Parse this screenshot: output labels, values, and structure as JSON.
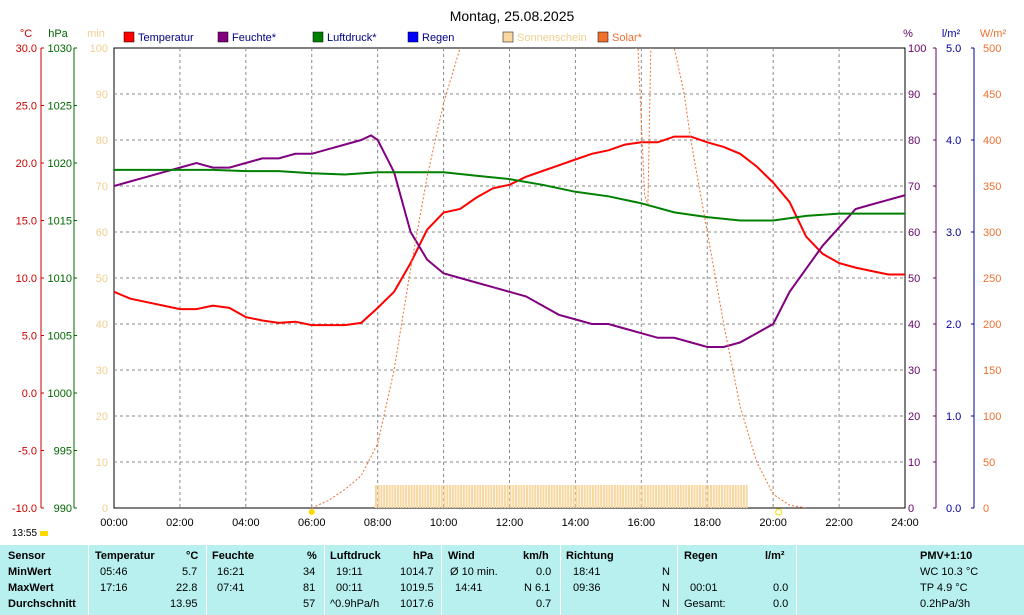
{
  "chart_data": {
    "type": "line",
    "title": "Montag, 25.08.2025",
    "axes": {
      "left_temp": {
        "unit": "°C",
        "range": [
          -10,
          30
        ],
        "ticks": [
          "30.0",
          "25.0",
          "20.0",
          "15.0",
          "10.0",
          "5.0",
          "0.0",
          "-5.0",
          "-10.0"
        ],
        "color": "#cc0000"
      },
      "left_pressure": {
        "unit": "hPa",
        "range": [
          990,
          1030
        ],
        "ticks": [
          "1030",
          "1025",
          "1020",
          "1015",
          "1010",
          "1005",
          "1000",
          "995",
          "990"
        ],
        "color": "#006600"
      },
      "left_minutes": {
        "unit": "min",
        "range": [
          0,
          100
        ],
        "ticks": [
          "100",
          "90",
          "80",
          "70",
          "60",
          "50",
          "40",
          "30",
          "20",
          "10",
          "0"
        ],
        "color": "#f0d090"
      },
      "right_humidity": {
        "unit": "%",
        "range": [
          0,
          100
        ],
        "ticks": [
          "100",
          "90",
          "80",
          "70",
          "60",
          "50",
          "40",
          "30",
          "20",
          "10",
          "0"
        ],
        "color": "#660066"
      },
      "right_rain": {
        "unit": "l/m²",
        "range": [
          0,
          5
        ],
        "ticks": [
          "5.0",
          "4.0",
          "3.0",
          "2.0",
          "1.0",
          "0.0"
        ],
        "color": "#000099"
      },
      "right_solar": {
        "unit": "W/m²",
        "range": [
          0,
          500
        ],
        "ticks": [
          "500",
          "450",
          "400",
          "350",
          "300",
          "250",
          "200",
          "150",
          "100",
          "50",
          "0"
        ],
        "color": "#f07030"
      },
      "x_ticks": [
        "00:00",
        "02:00",
        "04:00",
        "06:00",
        "08:00",
        "10:00",
        "12:00",
        "14:00",
        "16:00",
        "18:00",
        "20:00",
        "22:00",
        "24:00"
      ],
      "grid": true
    },
    "legend": [
      {
        "label": "Temperatur",
        "color": "#ff0000"
      },
      {
        "label": "Feuchte*",
        "color": "#800080"
      },
      {
        "label": "Luftdruck*",
        "color": "#008000"
      },
      {
        "label": "Regen",
        "color": "#0000ff"
      },
      {
        "label": "Sonnenschein",
        "color": "#f8d8a0"
      },
      {
        "label": "Solar*",
        "color": "#f07030"
      }
    ],
    "series": [
      {
        "name": "Temperatur",
        "axis": "left_temp",
        "color": "#ff0000",
        "x": [
          0,
          0.5,
          1,
          1.5,
          2,
          2.5,
          3,
          3.5,
          4,
          4.5,
          5,
          5.5,
          6,
          6.5,
          7,
          7.5,
          8,
          8.5,
          9,
          9.5,
          10,
          10.5,
          11,
          11.5,
          12,
          12.5,
          13,
          13.5,
          14,
          14.5,
          15,
          15.5,
          16,
          16.5,
          17,
          17.5,
          18,
          18.5,
          19,
          19.5,
          20,
          20.5,
          21,
          21.5,
          22,
          22.5,
          23,
          23.5,
          24
        ],
        "y": [
          8.8,
          8.2,
          7.9,
          7.6,
          7.3,
          7.3,
          7.6,
          7.4,
          6.6,
          6.3,
          6.1,
          6.2,
          5.9,
          5.9,
          5.9,
          6.1,
          7.4,
          8.8,
          11.3,
          14.2,
          15.7,
          16.0,
          17.0,
          17.8,
          18.1,
          18.8,
          19.3,
          19.8,
          20.3,
          20.8,
          21.1,
          21.6,
          21.8,
          21.8,
          22.3,
          22.3,
          21.8,
          21.4,
          20.8,
          19.7,
          18.3,
          16.6,
          13.6,
          12.1,
          11.3,
          10.9,
          10.6,
          10.3,
          10.3
        ]
      },
      {
        "name": "Feuchte*",
        "axis": "right_humidity",
        "color": "#800080",
        "x": [
          0,
          0.5,
          1,
          1.5,
          2,
          2.5,
          3,
          3.5,
          4,
          4.5,
          5,
          5.5,
          6,
          6.5,
          7,
          7.5,
          7.8,
          8,
          8.5,
          9,
          9.5,
          10,
          10.5,
          11,
          11.5,
          12,
          12.5,
          13,
          13.5,
          14,
          14.5,
          15,
          15.5,
          16,
          16.5,
          17,
          17.5,
          18,
          18.5,
          19,
          19.5,
          20,
          20.5,
          21,
          21.5,
          22,
          22.5,
          23,
          23.5,
          24
        ],
        "y": [
          70,
          71,
          72,
          73,
          74,
          75,
          74,
          74,
          75,
          76,
          76,
          77,
          77,
          78,
          79,
          80,
          81,
          80,
          73,
          60,
          54,
          51,
          50,
          49,
          48,
          47,
          46,
          44,
          42,
          41,
          40,
          40,
          39,
          38,
          37,
          37,
          36,
          35,
          35,
          36,
          38,
          40,
          47,
          52,
          57,
          61,
          65,
          66,
          67,
          68
        ]
      },
      {
        "name": "Luftdruck*",
        "axis": "left_pressure",
        "color": "#008000",
        "x": [
          0,
          1,
          2,
          3,
          4,
          5,
          6,
          7,
          8,
          9,
          10,
          11,
          12,
          13,
          14,
          15,
          16,
          17,
          18,
          19,
          20,
          21,
          22,
          23,
          24
        ],
        "y": [
          1019.4,
          1019.4,
          1019.4,
          1019.4,
          1019.3,
          1019.3,
          1019.1,
          1019.0,
          1019.2,
          1019.2,
          1019.2,
          1018.9,
          1018.6,
          1018.1,
          1017.5,
          1017.1,
          1016.5,
          1015.7,
          1015.3,
          1015.0,
          1015.0,
          1015.4,
          1015.6,
          1015.6,
          1015.6
        ]
      },
      {
        "name": "Solar*",
        "axis": "right_solar",
        "color": "#f07030",
        "dashed": true,
        "x": [
          6.0,
          6.5,
          7.0,
          7.5,
          8.0,
          8.5,
          9.0,
          9.5,
          10.0,
          10.5,
          11.0,
          15.9,
          16.0,
          16.1,
          16.2,
          16.3,
          16.5,
          16.8,
          17.0,
          17.3,
          17.5,
          18.0,
          18.5,
          19.0,
          19.5,
          20.0,
          20.5,
          21.0
        ],
        "y": [
          0,
          8,
          20,
          35,
          70,
          150,
          260,
          360,
          440,
          500,
          520,
          500,
          420,
          340,
          330,
          520,
          520,
          520,
          500,
          450,
          400,
          300,
          200,
          110,
          50,
          15,
          3,
          0
        ]
      }
    ],
    "sunshine": {
      "start": "07:55",
      "end": "19:15",
      "value_min": 5
    },
    "annotations": {
      "sunrise": "06:00",
      "sunset": "20:10"
    }
  },
  "time_label": "13:55",
  "stats": {
    "headers": {
      "sensor": "Sensor",
      "temp": "Temperatur",
      "temp_unit": "°C",
      "hum": "Feuchte",
      "hum_unit": "%",
      "press": "Luftdruck",
      "press_unit": "hPa",
      "wind": "Wind",
      "wind_unit": "km/h",
      "dir": "Richtung",
      "rain": "Regen",
      "rain_unit": "l/m²",
      "pmv": "PMV+1:10"
    },
    "rows": {
      "min_label": "MinWert",
      "max_label": "MaxWert",
      "avg_label": "Durchschnitt"
    },
    "temp": {
      "min_time": "05:46",
      "min": "5.7",
      "max_time": "17:16",
      "max": "22.8",
      "avg": "13.95"
    },
    "hum": {
      "min_time": "16:21",
      "min": "34",
      "max_time": "07:41",
      "max": "81",
      "avg": "57"
    },
    "press": {
      "min_time": "19:11",
      "min": "1014.7",
      "max_time": "00:11",
      "max": "1019.5",
      "trend": "^0.9hPa/h",
      "avg": "1017.6"
    },
    "wind": {
      "row1_label": "Ø 10 min.",
      "row1_val": "0.0",
      "row2_time": "14:41",
      "row2_val": "N 6.1",
      "avg": "0.7"
    },
    "dir": {
      "row1_time": "18:41",
      "row1_val": "N",
      "row2_time": "09:36",
      "row2_val": "N",
      "row3_val": "N"
    },
    "rain": {
      "row2_time": "00:01",
      "row2_val": "0.0",
      "row3_label": "Gesamt:",
      "row3_val": "0.0",
      "row1_val": ""
    },
    "pmv": {
      "wc": "WC 10.3 °C",
      "tp": "TP 4.9 °C",
      "trend": "0.2hPa/3h"
    }
  }
}
